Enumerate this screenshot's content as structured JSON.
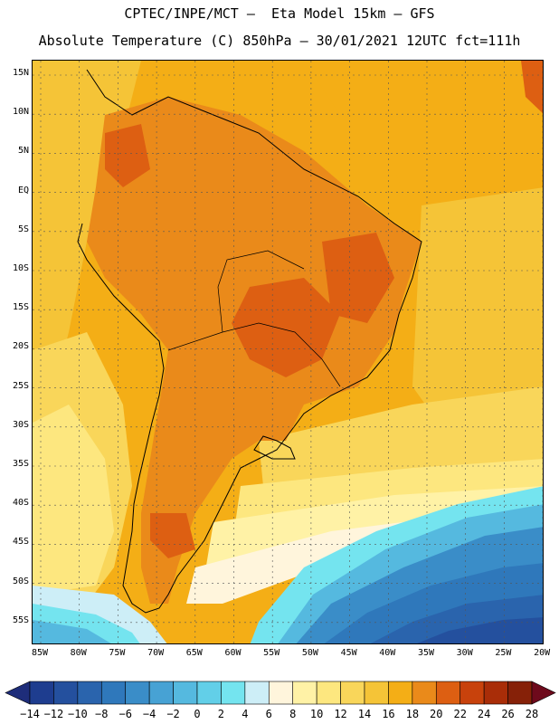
{
  "header": {
    "line1": "CPTEC/INPE/MCT –  Eta Model 15km – GFS",
    "line2": "Absolute Temperature (C) 850hPa – 30/01/2021 12UTC fct=111h"
  },
  "map": {
    "latitude_labels": [
      "15N",
      "10N",
      "5N",
      "EQ",
      "5S",
      "10S",
      "15S",
      "20S",
      "25S",
      "30S",
      "35S",
      "40S",
      "45S",
      "50S",
      "55S"
    ],
    "longitude_labels": [
      "85W",
      "80W",
      "75W",
      "70W",
      "65W",
      "60W",
      "55W",
      "50W",
      "45W",
      "40W",
      "35W",
      "30W",
      "25W",
      "20W"
    ]
  },
  "legend": {
    "labels": [
      "-14",
      "-12",
      "-10",
      "-8",
      "-6",
      "-4",
      "-2",
      "0",
      "2",
      "4",
      "6",
      "8",
      "10",
      "12",
      "14",
      "16",
      "18",
      "20",
      "22",
      "24",
      "26",
      "28"
    ],
    "colors": [
      "#1e3d8f",
      "#24509e",
      "#2a64ad",
      "#2f78bb",
      "#3a8dc8",
      "#47a2d4",
      "#55b9df",
      "#62cfe8",
      "#74e4ef",
      "#cdeef7",
      "#fff5dc",
      "#fff2a6",
      "#fde77f",
      "#f9d65a",
      "#f5c437",
      "#f4ae16",
      "#ea8a1a",
      "#dd5f12",
      "#c8420c",
      "#a92d08",
      "#862108"
    ],
    "left_arrow_color": "#1e2d7a",
    "right_arrow_color": "#6e0a1c"
  }
}
